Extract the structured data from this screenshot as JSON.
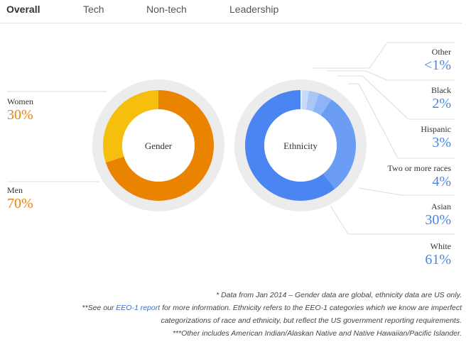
{
  "tabs": [
    "Overall",
    "Tech",
    "Non-tech",
    "Leadership"
  ],
  "colors": {
    "men": "#ea8300",
    "women": "#f6be0d",
    "white": "#4a85f2",
    "asian": "#6b9df4",
    "two_or_more": "#8db4f6",
    "hispanic": "#a9c6f7",
    "black": "#c7dafa",
    "other": "#e6eefc",
    "ring": "#ececec"
  },
  "chart_data": [
    {
      "type": "pie",
      "title": "Gender",
      "categories": [
        "Women",
        "Men"
      ],
      "values": [
        30,
        70
      ],
      "labels": [
        "30%",
        "70%"
      ]
    },
    {
      "type": "pie",
      "title": "Ethnicity",
      "categories": [
        "Other",
        "Black",
        "Hispanic",
        "Two or more races",
        "Asian",
        "White"
      ],
      "values": [
        0.5,
        2,
        3,
        4,
        30,
        61
      ],
      "labels": [
        "<1%",
        "2%",
        "3%",
        "4%",
        "30%",
        "61%"
      ]
    }
  ],
  "notes": {
    "line1": "* Data from Jan 2014 – Gender data are global, ethnicity data are US only.",
    "line2_prefix": "**See our ",
    "line2_link": "EEO-1 report",
    "line2_suffix": " for more information. Ethnicity refers to the EEO-1 categories which we know are imperfect",
    "line3": "categorizations of race and ethnicity, but reflect the US government reporting requirements.",
    "line4": "***Other includes American Indian/Alaskan Native and Native Hawaiian/Pacific Islander."
  }
}
